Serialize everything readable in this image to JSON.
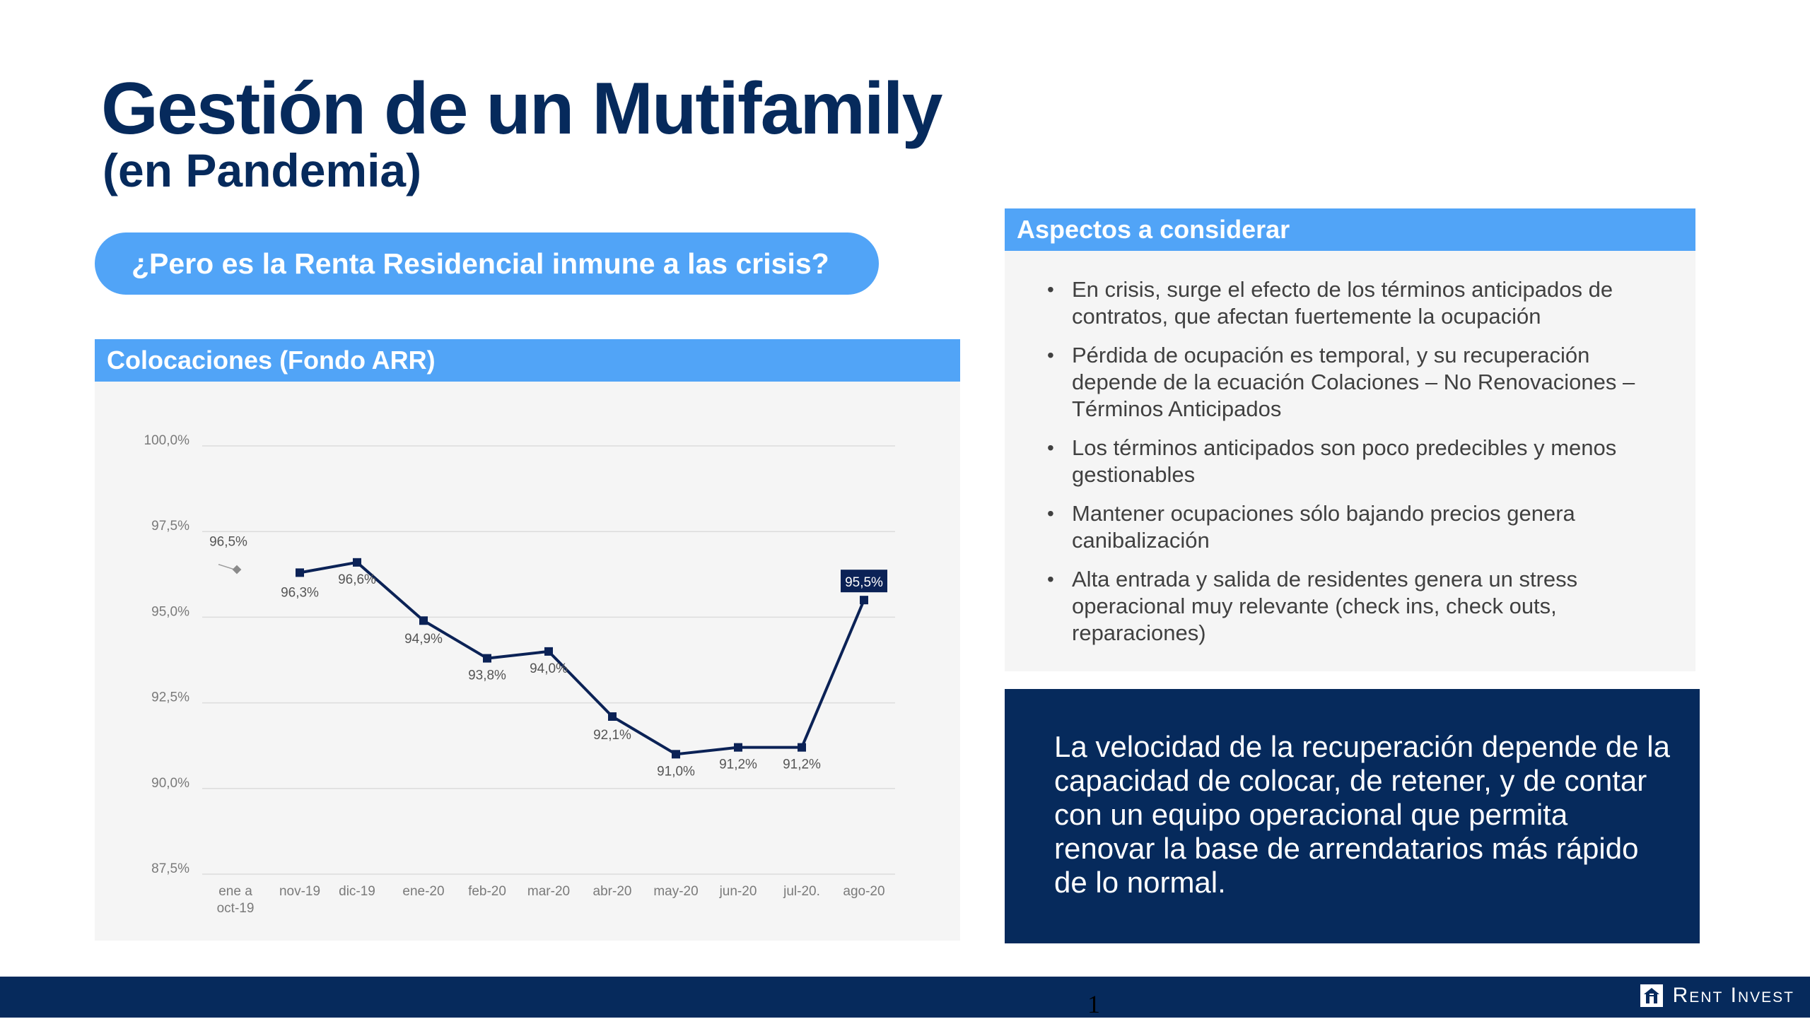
{
  "title": "Gestión de un Mutifamily",
  "subtitle": "(en Pandemia)",
  "question": "¿Pero es la Renta Residencial inmune a las crisis?",
  "chart_header": "Colocaciones (Fondo ARR)",
  "chart_data": {
    "type": "line",
    "categories": [
      "ene a oct-19",
      "nov-19",
      "dic-19",
      "ene-20",
      "feb-20",
      "mar-20",
      "abr-20",
      "may-20",
      "jun-20",
      "jul-20.",
      "ago-20"
    ],
    "category_lines": [
      [
        "ene a",
        "oct-19"
      ],
      [
        "nov-19"
      ],
      [
        "dic-19"
      ],
      [
        "ene-20"
      ],
      [
        "feb-20"
      ],
      [
        "mar-20"
      ],
      [
        "abr-20"
      ],
      [
        "may-20"
      ],
      [
        "jun-20"
      ],
      [
        "jul-20."
      ],
      [
        "ago-20"
      ]
    ],
    "values": [
      96.5,
      96.3,
      96.6,
      94.9,
      93.8,
      94.0,
      92.1,
      91.0,
      91.2,
      91.2,
      95.5
    ],
    "data_labels": [
      "96,5%",
      "96,3%",
      "96,6%",
      "94,9%",
      "93,8%",
      "94,0%",
      "92,1%",
      "91,0%",
      "91,2%",
      "91,2%",
      "95,5%"
    ],
    "y_ticks": [
      100.0,
      97.5,
      95.0,
      92.5,
      90.0,
      87.5
    ],
    "y_tick_labels": [
      "100,0%",
      "97,5%",
      "95,0%",
      "92,5%",
      "90,0%",
      "87,5%"
    ],
    "ylim": [
      87.5,
      100.0
    ],
    "grid": true,
    "colors": {
      "line": "#0b2256",
      "highlight_label_bg": "#0b2256",
      "first_point": "#8a8a8a"
    }
  },
  "aspects": {
    "header": "Aspectos a considerar",
    "items": [
      "En crisis, surge el efecto de los términos  anticipados de contratos, que afectan  fuertemente la ocupación",
      "Pérdida de ocupación es temporal, y su  recuperación depende de la ecuación  Colaciones – No Renovaciones –  Términos Anticipados",
      "Los términos anticipados son poco  predecibles y menos gestionables",
      "Mantener ocupaciones sólo bajando  precios genera canibalización",
      "Alta entrada y salida de residentes  genera un stress operacional muy  relevante (check ins, check outs, reparaciones)"
    ]
  },
  "callout": "La velocidad de la recuperación depende de la capacidad de colocar, de retener, y de contar con un equipo operacional que permita renovar la base de arrendatarios más rápido de lo normal.",
  "page_number": "1",
  "logo": {
    "text": "Rent Invest",
    "icon": "house-icon"
  },
  "colors": {
    "navy": "#062a5c",
    "accent_blue": "#51a4f7",
    "panel_gray": "#f5f5f5"
  }
}
